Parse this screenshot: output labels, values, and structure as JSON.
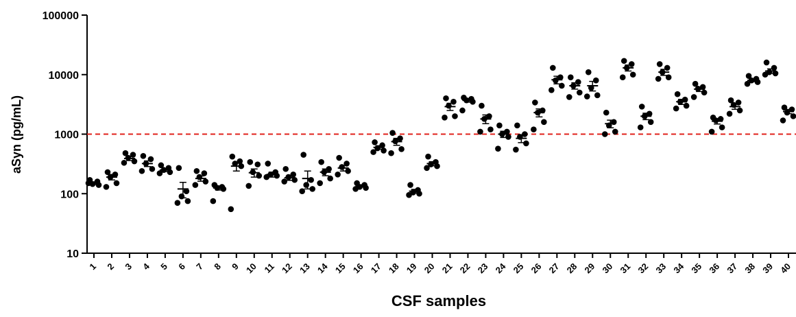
{
  "chart_data": {
    "type": "dot",
    "y_label": "aSyn (pg/mL)",
    "x_label": "CSF samples",
    "categories": [
      "1",
      "2",
      "3",
      "4",
      "5",
      "6",
      "7",
      "8",
      "9",
      "10",
      "11",
      "12",
      "13",
      "14",
      "15",
      "16",
      "17",
      "18",
      "19",
      "20",
      "21",
      "22",
      "23",
      "24",
      "25",
      "26",
      "27",
      "28",
      "29",
      "30",
      "31",
      "32",
      "33",
      "34",
      "35",
      "36",
      "37",
      "38",
      "39",
      "40"
    ],
    "points": [
      [
        170,
        160,
        145,
        140,
        150
      ],
      [
        230,
        210,
        190,
        150,
        130
      ],
      [
        480,
        450,
        400,
        350,
        330
      ],
      [
        430,
        380,
        320,
        260,
        240
      ],
      [
        300,
        270,
        250,
        230,
        220
      ],
      [
        270,
        110,
        90,
        75,
        70
      ],
      [
        240,
        220,
        190,
        160,
        140
      ],
      [
        140,
        130,
        125,
        120,
        75
      ],
      [
        420,
        350,
        320,
        290,
        55
      ],
      [
        340,
        310,
        230,
        200,
        135
      ],
      [
        320,
        230,
        210,
        200,
        190
      ],
      [
        260,
        210,
        190,
        170,
        160
      ],
      [
        450,
        170,
        140,
        120,
        110
      ],
      [
        340,
        260,
        230,
        180,
        150
      ],
      [
        400,
        320,
        280,
        240,
        210
      ],
      [
        150,
        140,
        130,
        125,
        120
      ],
      [
        730,
        650,
        580,
        530,
        500
      ],
      [
        1050,
        850,
        760,
        560,
        480
      ],
      [
        140,
        115,
        105,
        100,
        95
      ],
      [
        420,
        340,
        310,
        290,
        270
      ],
      [
        4000,
        3500,
        3000,
        2000,
        1900
      ],
      [
        4100,
        3900,
        3700,
        3500,
        2500
      ],
      [
        3000,
        2000,
        1800,
        1200,
        1100
      ],
      [
        1400,
        1100,
        1000,
        900,
        570
      ],
      [
        1400,
        1000,
        900,
        700,
        550
      ],
      [
        3400,
        2500,
        2300,
        1600,
        1200
      ],
      [
        13000,
        9000,
        8000,
        6500,
        5500
      ],
      [
        9000,
        7500,
        6500,
        5000,
        4200
      ],
      [
        11000,
        8000,
        6000,
        4500,
        4300
      ],
      [
        2300,
        1600,
        1400,
        1100,
        1000
      ],
      [
        17000,
        15000,
        13000,
        10000,
        9000
      ],
      [
        2900,
        2200,
        2000,
        1600,
        1300
      ],
      [
        15000,
        13000,
        11000,
        9000,
        8500
      ],
      [
        4700,
        3800,
        3500,
        3000,
        2700
      ],
      [
        7000,
        6200,
        5800,
        5000,
        4200
      ],
      [
        1900,
        1800,
        1700,
        1300,
        1100
      ],
      [
        3700,
        3400,
        3100,
        2500,
        2200
      ],
      [
        9500,
        8500,
        8000,
        7500,
        7000
      ],
      [
        16000,
        13000,
        11000,
        10500,
        10000
      ],
      [
        2800,
        2600,
        2300,
        2000,
        1700
      ]
    ],
    "mean": [
      150,
      190,
      390,
      320,
      250,
      120,
      180,
      125,
      290,
      225,
      210,
      185,
      180,
      230,
      270,
      135,
      600,
      750,
      110,
      320,
      2900,
      3700,
      1800,
      1000,
      850,
      2300,
      8200,
      6500,
      6500,
      1500,
      13000,
      2000,
      11000,
      3500,
      5700,
      1650,
      2900,
      8000,
      11500,
      2400
    ],
    "sem": [
      8,
      20,
      30,
      35,
      15,
      35,
      18,
      10,
      50,
      35,
      20,
      18,
      60,
      30,
      30,
      6,
      40,
      100,
      8,
      25,
      400,
      250,
      300,
      120,
      130,
      350,
      1200,
      800,
      1200,
      220,
      1500,
      250,
      1300,
      350,
      500,
      170,
      280,
      400,
      1000,
      200
    ],
    "color": "#000000",
    "reference_line": {
      "value": 1000,
      "color": "#e0201b"
    },
    "ylim": [
      10,
      100000
    ],
    "yticks": [
      10,
      100,
      1000,
      10000,
      100000
    ],
    "log_scale": true
  }
}
